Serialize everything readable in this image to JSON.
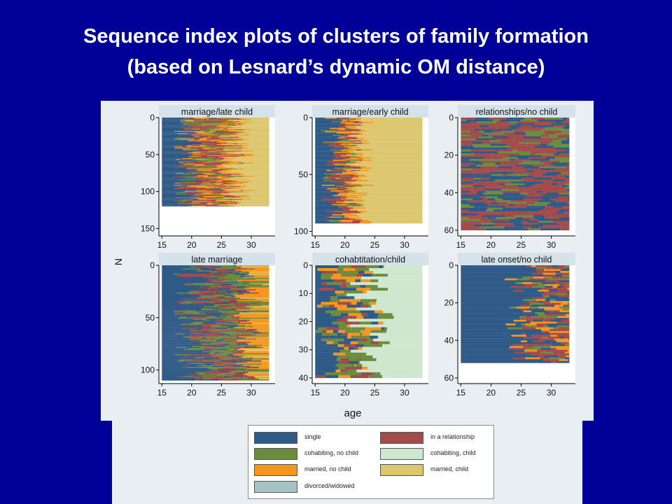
{
  "slide": {
    "title_line1": "Sequence index plots of clusters of family formation",
    "title_line2": "(based on Lesnard’s dynamic OM distance)"
  },
  "colors": {
    "background": "#000099",
    "single": "#2f5a87",
    "in_a_relationship": "#a34a4a",
    "cohabiting_no_child": "#6b8c3e",
    "cohabiting_child": "#cfe6cf",
    "married_no_child": "#f5961e",
    "married_child": "#dcc66e",
    "divorced_widowed": "#a6c2c2"
  },
  "chart_data": {
    "type": "sequence-index",
    "xlabel": "age",
    "ylabel": "N",
    "legend": [
      {
        "key": "single",
        "label": "single",
        "color": "#2f5a87"
      },
      {
        "key": "in_a_relationship",
        "label": "in a relationship",
        "color": "#a34a4a"
      },
      {
        "key": "cohabiting_no_child",
        "label": "cohabiting, no child",
        "color": "#6b8c3e"
      },
      {
        "key": "cohabiting_child",
        "label": "cohabiting, child",
        "color": "#cfe6cf"
      },
      {
        "key": "married_no_child",
        "label": "married, no child",
        "color": "#f5961e"
      },
      {
        "key": "married_child",
        "label": "married, child",
        "color": "#dcc66e"
      },
      {
        "key": "divorced_widowed",
        "label": "divorced/widowed",
        "color": "#a6c2c2"
      }
    ],
    "panels": [
      {
        "title": "marriage/late child",
        "n": 120,
        "ylim": [
          0,
          160
        ],
        "yticks": [
          0,
          50,
          100,
          150
        ],
        "xlim": [
          14.5,
          34
        ],
        "xticks": [
          15,
          20,
          25,
          30
        ],
        "age_range": [
          15,
          33
        ],
        "pattern": "marriage_late",
        "age_single_end": [
          17,
          22
        ],
        "age_transition_end": [
          24,
          29
        ],
        "final_state": "married_child"
      },
      {
        "title": "marriage/early child",
        "n": 93,
        "ylim": [
          0,
          104
        ],
        "yticks": [
          0,
          50,
          100
        ],
        "xlim": [
          14.5,
          34
        ],
        "xticks": [
          15,
          20,
          25,
          30
        ],
        "age_range": [
          15,
          33
        ],
        "pattern": "marriage_early",
        "age_single_end": [
          16,
          20
        ],
        "age_transition_end": [
          19,
          23
        ],
        "final_state": "married_child"
      },
      {
        "title": "relationships/no child",
        "n": 60,
        "ylim": [
          0,
          63
        ],
        "yticks": [
          0,
          20,
          40,
          60
        ],
        "xlim": [
          14.5,
          34
        ],
        "xticks": [
          15,
          20,
          25,
          30
        ],
        "age_range": [
          15,
          33
        ],
        "pattern": "relationships",
        "final_state": "in_a_relationship"
      },
      {
        "title": "late marriage",
        "n": 110,
        "ylim": [
          0,
          113
        ],
        "yticks": [
          0,
          50,
          100
        ],
        "xlim": [
          14.5,
          34
        ],
        "xticks": [
          15,
          20,
          25,
          30
        ],
        "age_range": [
          15,
          33
        ],
        "pattern": "late_marriage",
        "age_single_end": [
          17,
          24
        ],
        "age_transition_end": [
          27,
          32
        ],
        "final_state": "married_no_child"
      },
      {
        "title": "cohabtitation/child",
        "n": 40,
        "ylim": [
          0,
          42
        ],
        "yticks": [
          0,
          10,
          20,
          30,
          40
        ],
        "xlim": [
          14.5,
          34
        ],
        "xticks": [
          15,
          20,
          25,
          30
        ],
        "age_range": [
          15,
          33
        ],
        "pattern": "cohabitation",
        "age_single_end": [
          15,
          19
        ],
        "age_transition_end": [
          20,
          27
        ],
        "final_state": "cohabiting_child"
      },
      {
        "title": "late onset/no child",
        "n": 52,
        "ylim": [
          0,
          63
        ],
        "yticks": [
          0,
          20,
          40,
          60
        ],
        "xlim": [
          14.5,
          34
        ],
        "xticks": [
          15,
          20,
          25,
          30
        ],
        "age_range": [
          15,
          33
        ],
        "pattern": "late_onset",
        "age_single_end": [
          22,
          29
        ],
        "final_state": "single"
      }
    ]
  }
}
